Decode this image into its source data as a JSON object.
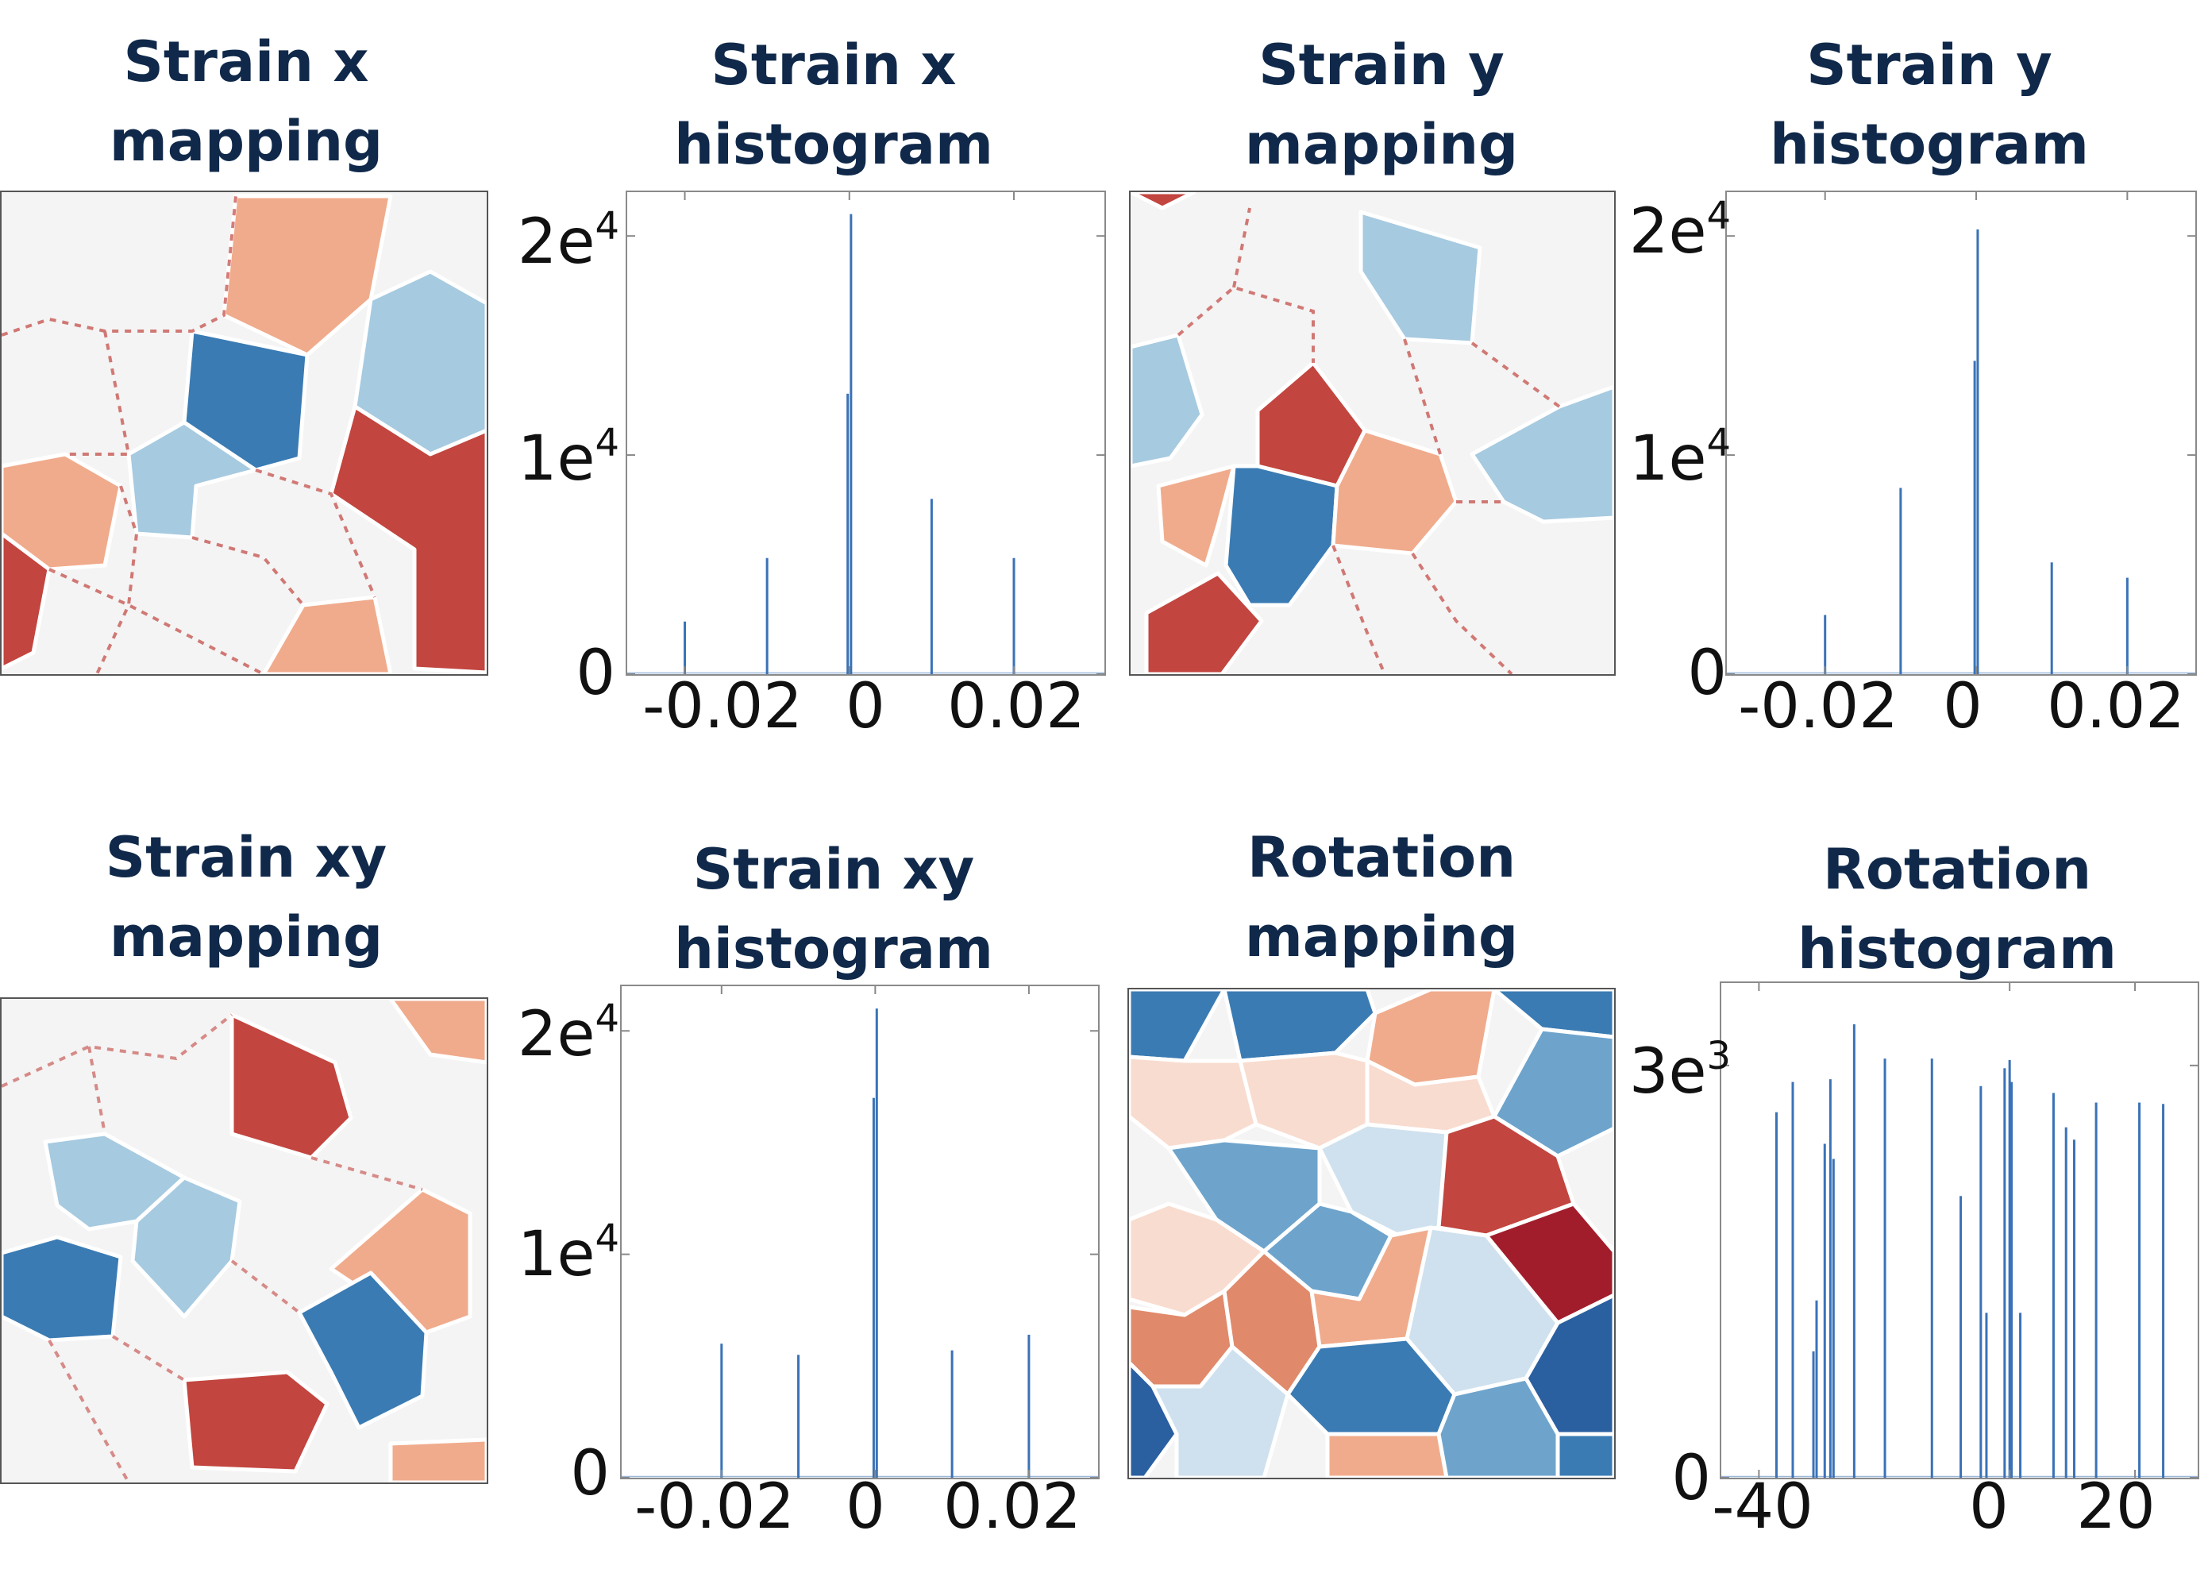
{
  "titles": {
    "strain_x_map": [
      "Strain x",
      "mapping"
    ],
    "strain_x_hist": [
      "Strain x",
      "histogram"
    ],
    "strain_y_map": [
      "Strain y",
      "mapping"
    ],
    "strain_y_hist": [
      "Strain y",
      "histogram"
    ],
    "strain_xy_map": [
      "Strain xy",
      "mapping"
    ],
    "strain_xy_hist": [
      "Strain xy",
      "histogram"
    ],
    "rotation_map": [
      "Rotation",
      "mapping"
    ],
    "rotation_hist": [
      "Rotation",
      "histogram"
    ]
  },
  "colors": {
    "bar": "#3a72b8",
    "red_dark": "#a21d2b",
    "red": "#c2453f",
    "red_light": "#f0ab8c",
    "red_pale": "#f8dccf",
    "neutral": "#f4f4f4",
    "blue_pale": "#cfe1ee",
    "blue_light": "#a6cae0",
    "blue_mid": "#6ea4cc",
    "blue": "#3a7bb3",
    "blue_dark": "#2a5fa0"
  },
  "chart_data": [
    {
      "id": "strain_x_hist",
      "type": "bar",
      "xlim": [
        -0.027,
        0.031
      ],
      "ylim": [
        0,
        22000
      ],
      "x_ticks": [
        -0.02,
        0,
        0.02
      ],
      "x_tick_labels": [
        "-0.02",
        "0",
        "0.02"
      ],
      "y_ticks": [
        0,
        10000,
        20000
      ],
      "y_tick_labels": [
        {
          "base": "0",
          "exp": ""
        },
        {
          "base": "1e",
          "exp": "4"
        },
        {
          "base": "2e",
          "exp": "4"
        }
      ],
      "x": [
        -0.02,
        -0.01,
        -0.0002,
        0.0002,
        0.01,
        0.02
      ],
      "values": [
        2400,
        5300,
        12800,
        21000,
        8000,
        5300
      ]
    },
    {
      "id": "strain_y_hist",
      "type": "bar",
      "xlim": [
        -0.033,
        0.029
      ],
      "ylim": [
        0,
        22000
      ],
      "x_ticks": [
        -0.02,
        0,
        0.02
      ],
      "x_tick_labels": [
        "-0.02",
        "0",
        "0.02"
      ],
      "y_ticks": [
        0,
        10000,
        20000
      ],
      "y_tick_labels": [
        {
          "base": "0",
          "exp": ""
        },
        {
          "base": "1e",
          "exp": "4"
        },
        {
          "base": "2e",
          "exp": "4"
        }
      ],
      "x": [
        -0.02,
        -0.01,
        -0.0002,
        0.0002,
        0.01,
        0.02
      ],
      "values": [
        2700,
        8500,
        14300,
        20300,
        5100,
        4400
      ]
    },
    {
      "id": "strain_xy_hist",
      "type": "bar",
      "xlim": [
        -0.033,
        0.029
      ],
      "ylim": [
        0,
        22000
      ],
      "x_ticks": [
        -0.02,
        0,
        0.02
      ],
      "x_tick_labels": [
        "-0.02",
        "0",
        "0.02"
      ],
      "y_ticks": [
        0,
        10000,
        20000
      ],
      "y_tick_labels": [
        {
          "base": "0",
          "exp": ""
        },
        {
          "base": "1e",
          "exp": "4"
        },
        {
          "base": "2e",
          "exp": "4"
        }
      ],
      "x": [
        -0.02,
        -0.01,
        -0.0002,
        0.0002,
        0.01,
        0.02
      ],
      "values": [
        6000,
        5500,
        17000,
        21000,
        5700,
        6400
      ]
    },
    {
      "id": "rotation_hist",
      "type": "bar",
      "xlim": [
        -46,
        30
      ],
      "ylim": [
        0,
        3600
      ],
      "x_ticks": [
        -40,
        0,
        20
      ],
      "x_tick_labels": [
        "-40",
        "0",
        "20"
      ],
      "y_ticks": [
        0,
        3000
      ],
      "y_tick_labels": [
        {
          "base": "0",
          "exp": ""
        },
        {
          "base": "3e",
          "exp": "3"
        }
      ],
      "x": [
        -37.2,
        -34.6,
        -31.3,
        -30.8,
        -29.5,
        -28.6,
        -28.1,
        -24.8,
        -19.9,
        -12.4,
        -7.8,
        -4.6,
        -3.7,
        -0.8,
        0,
        0.3,
        1.7,
        7.0,
        9.0,
        10.3,
        13.8,
        20.7,
        24.5
      ],
      "values": [
        2660,
        2880,
        920,
        1290,
        2430,
        2900,
        2320,
        3300,
        3050,
        3050,
        2050,
        2850,
        1200,
        2980,
        3040,
        2880,
        1200,
        2800,
        2550,
        2460,
        2730,
        2730,
        2720
      ]
    }
  ]
}
